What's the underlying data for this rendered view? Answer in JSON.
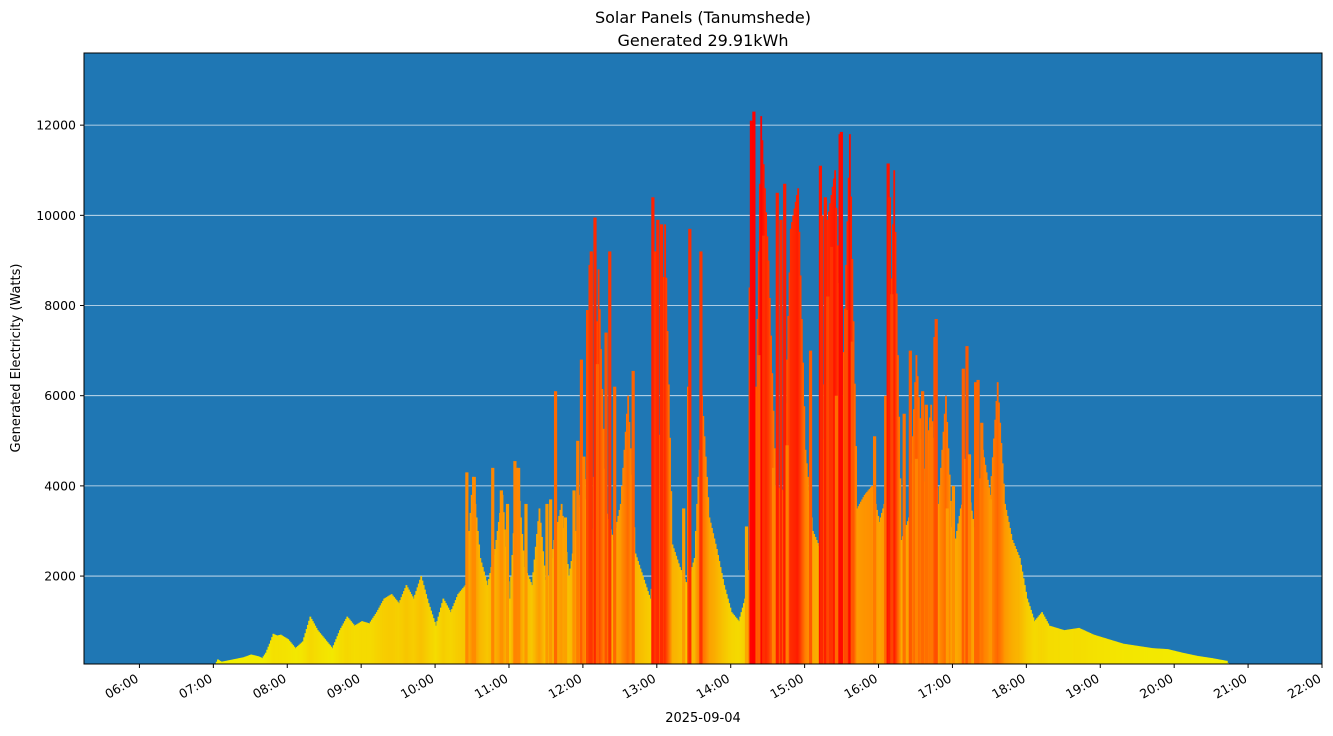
{
  "chart_data": {
    "type": "bar",
    "title": "Solar Panels (Tanumshede)",
    "subtitle": "Generated 29.91kWh",
    "xlabel": "2025-09-04",
    "ylabel": "Generated Electricity (Watts)",
    "x_range_hours": [
      5.25,
      22.0
    ],
    "ylim": [
      50,
      13600
    ],
    "y_ticks": [
      2000,
      4000,
      6000,
      8000,
      10000,
      12000
    ],
    "y_tick_labels": [
      "2000",
      "4000",
      "6000",
      "8000",
      "10000",
      "12000"
    ],
    "x_ticks": [
      6,
      7,
      8,
      9,
      10,
      11,
      12,
      13,
      14,
      15,
      16,
      17,
      18,
      19,
      20,
      21,
      22
    ],
    "x_tick_labels": [
      "06:00",
      "07:00",
      "08:00",
      "09:00",
      "10:00",
      "11:00",
      "12:00",
      "13:00",
      "14:00",
      "15:00",
      "16:00",
      "17:00",
      "18:00",
      "19:00",
      "20:00",
      "21:00",
      "22:00"
    ],
    "grid": "horizontal",
    "background_color": "#1f77b4",
    "color_scale": {
      "low": "#f2f200",
      "mid": "#ff8800",
      "high": "#ff0000",
      "max_watts": 12300
    },
    "bar_interval_minutes": 1,
    "keypoints_hours": [
      5.25,
      7.0,
      7.05,
      7.1,
      7.25,
      7.4,
      7.5,
      7.6,
      7.65,
      7.7,
      7.75,
      7.8,
      7.85,
      7.9,
      8.0,
      8.1,
      8.2,
      8.3,
      8.4,
      8.5,
      8.6,
      8.7,
      8.8,
      8.9,
      9.0,
      9.1,
      9.2,
      9.3,
      9.4,
      9.5,
      9.6,
      9.7,
      9.8,
      9.9,
      10.0,
      10.1,
      10.2,
      10.3,
      10.4,
      10.5,
      10.6,
      10.7,
      10.8,
      10.9,
      11.0,
      11.1,
      11.2,
      11.3,
      11.4,
      11.5,
      11.6,
      11.7,
      11.8,
      11.9,
      12.0,
      12.1,
      12.2,
      12.3,
      12.4,
      12.5,
      12.6,
      12.7,
      12.8,
      12.9,
      13.0,
      13.1,
      13.2,
      13.3,
      13.4,
      13.5,
      13.6,
      13.7,
      13.8,
      13.9,
      14.0,
      14.1,
      14.2,
      14.3,
      14.4,
      14.5,
      14.6,
      14.7,
      14.8,
      14.9,
      15.0,
      15.1,
      15.2,
      15.3,
      15.4,
      15.5,
      15.6,
      15.7,
      15.8,
      15.9,
      16.0,
      16.1,
      16.2,
      16.3,
      16.4,
      16.5,
      16.6,
      16.7,
      16.8,
      16.9,
      17.0,
      17.1,
      17.2,
      17.3,
      17.4,
      17.5,
      17.6,
      17.7,
      17.8,
      17.9,
      18.0,
      18.1,
      18.2,
      18.3,
      18.5,
      18.7,
      18.9,
      19.1,
      19.3,
      19.5,
      19.7,
      19.9,
      20.1,
      20.3,
      20.5,
      20.7,
      20.72,
      22.0
    ],
    "keypoints_watts": [
      0,
      0,
      150,
      100,
      150,
      200,
      260,
      220,
      180,
      300,
      500,
      720,
      680,
      700,
      600,
      400,
      550,
      1100,
      800,
      600,
      400,
      800,
      1100,
      900,
      1000,
      950,
      1200,
      1500,
      1600,
      1400,
      1800,
      1500,
      2000,
      1400,
      900,
      1500,
      1200,
      1600,
      1800,
      4200,
      2400,
      1800,
      2600,
      3800,
      1500,
      4400,
      2200,
      1800,
      3500,
      1600,
      2800,
      3600,
      2000,
      3000,
      4600,
      1900,
      8800,
      3500,
      2800,
      3600,
      6000,
      2500,
      2000,
      1500,
      2800,
      9800,
      2700,
      2200,
      1800,
      2400,
      6000,
      3300,
      2600,
      1800,
      1200,
      1000,
      1600,
      3200,
      12200,
      9000,
      4000,
      3900,
      9700,
      10600,
      4800,
      3000,
      2600,
      9900,
      11000,
      6000,
      11800,
      3500,
      3800,
      4000,
      3200,
      3800,
      11000,
      2800,
      3300,
      6900,
      4100,
      5800,
      3600,
      6000,
      2500,
      3500,
      4000,
      2900,
      4800,
      3800,
      6300,
      3600,
      2800,
      2400,
      1500,
      1000,
      1200,
      900,
      800,
      850,
      700,
      600,
      500,
      450,
      400,
      380,
      300,
      230,
      180,
      120,
      60,
      30,
      0,
      0
    ],
    "peaks": [
      {
        "t": "10:25",
        "w": 4300
      },
      {
        "t": "10:31",
        "w": 4200
      },
      {
        "t": "10:46",
        "w": 4400
      },
      {
        "t": "10:53",
        "w": 3900
      },
      {
        "t": "10:58",
        "w": 3600
      },
      {
        "t": "11:04",
        "w": 4550
      },
      {
        "t": "11:07",
        "w": 4400
      },
      {
        "t": "11:13",
        "w": 3600
      },
      {
        "t": "11:30",
        "w": 3600
      },
      {
        "t": "11:33",
        "w": 3700
      },
      {
        "t": "11:37",
        "w": 6100
      },
      {
        "t": "11:45",
        "w": 3300
      },
      {
        "t": "11:52",
        "w": 3900
      },
      {
        "t": "11:55",
        "w": 5000
      },
      {
        "t": "11:58",
        "w": 6800
      },
      {
        "t": "12:00",
        "w": 4650
      },
      {
        "t": "12:03",
        "w": 7900
      },
      {
        "t": "12:05",
        "w": 8900
      },
      {
        "t": "12:06",
        "w": 9200
      },
      {
        "t": "12:09",
        "w": 9950
      },
      {
        "t": "12:11",
        "w": 6700
      },
      {
        "t": "12:18",
        "w": 7400
      },
      {
        "t": "12:21",
        "w": 9200
      },
      {
        "t": "12:25",
        "w": 6200
      },
      {
        "t": "12:40",
        "w": 6550
      },
      {
        "t": "12:56",
        "w": 10400
      },
      {
        "t": "12:58",
        "w": 9200
      },
      {
        "t": "13:00",
        "w": 9900
      },
      {
        "t": "13:03",
        "w": 9800
      },
      {
        "t": "13:21",
        "w": 3500
      },
      {
        "t": "13:25",
        "w": 6200
      },
      {
        "t": "13:26",
        "w": 9700
      },
      {
        "t": "13:35",
        "w": 9200
      },
      {
        "t": "14:12",
        "w": 3100
      },
      {
        "t": "14:15",
        "w": 8400
      },
      {
        "t": "14:16",
        "w": 12100
      },
      {
        "t": "14:18",
        "w": 12300
      },
      {
        "t": "14:22",
        "w": 6900
      },
      {
        "t": "14:26",
        "w": 9550
      },
      {
        "t": "14:34",
        "w": 4400
      },
      {
        "t": "14:37",
        "w": 10500
      },
      {
        "t": "14:40",
        "w": 9900
      },
      {
        "t": "14:43",
        "w": 10700
      },
      {
        "t": "14:45",
        "w": 4900
      },
      {
        "t": "15:04",
        "w": 7000
      },
      {
        "t": "15:12",
        "w": 11100
      },
      {
        "t": "15:13",
        "w": 10000
      },
      {
        "t": "15:16",
        "w": 10400
      },
      {
        "t": "15:18",
        "w": 8200
      },
      {
        "t": "15:21",
        "w": 9300
      },
      {
        "t": "15:25",
        "w": 6000
      },
      {
        "t": "15:28",
        "w": 11800
      },
      {
        "t": "15:29",
        "w": 11850
      },
      {
        "t": "15:33",
        "w": 7900
      },
      {
        "t": "15:38",
        "w": 7200
      },
      {
        "t": "15:56",
        "w": 5100
      },
      {
        "t": "16:05",
        "w": 6000
      },
      {
        "t": "16:07",
        "w": 11150
      },
      {
        "t": "16:08",
        "w": 10400
      },
      {
        "t": "16:10",
        "w": 8250
      },
      {
        "t": "16:20",
        "w": 5600
      },
      {
        "t": "16:25",
        "w": 7000
      },
      {
        "t": "16:30",
        "w": 4600
      },
      {
        "t": "16:35",
        "w": 6100
      },
      {
        "t": "16:38",
        "w": 5800
      },
      {
        "t": "16:42",
        "w": 5300
      },
      {
        "t": "16:45",
        "w": 7300
      },
      {
        "t": "16:46",
        "w": 7700
      },
      {
        "t": "16:55",
        "w": 3500
      },
      {
        "t": "17:00",
        "w": 4000
      },
      {
        "t": "17:08",
        "w": 6600
      },
      {
        "t": "17:10",
        "w": 4600
      },
      {
        "t": "17:11",
        "w": 7100
      },
      {
        "t": "17:13",
        "w": 4700
      },
      {
        "t": "17:18",
        "w": 6300
      },
      {
        "t": "17:20",
        "w": 6350
      },
      {
        "t": "17:23",
        "w": 5400
      },
      {
        "t": "17:30",
        "w": 3700
      }
    ]
  }
}
